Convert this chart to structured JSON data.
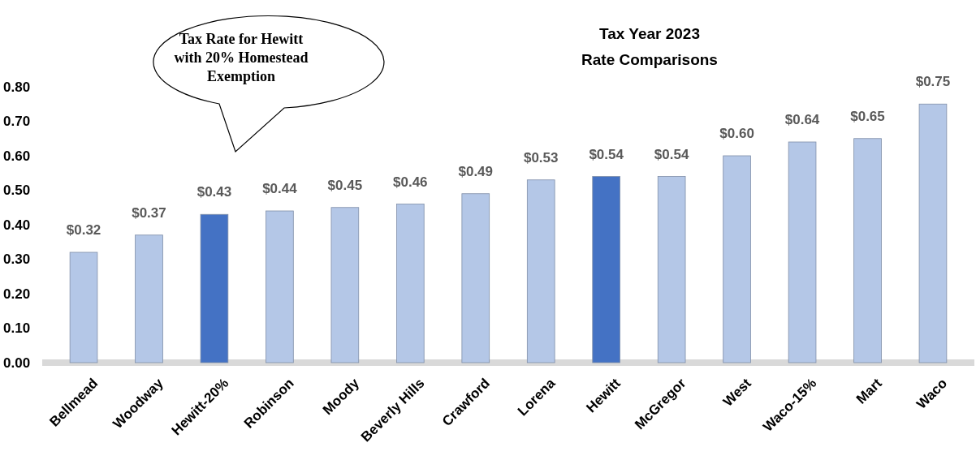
{
  "chart_data": {
    "type": "bar",
    "title": "Tax Year 2023",
    "subtitle": "Rate Comparisons",
    "categories": [
      "Bellmead",
      "Woodway",
      "Hewitt-20%",
      "Robinson",
      "Moody",
      "Beverly Hills",
      "Crawford",
      "Lorena",
      "Hewitt",
      "McGregor",
      "West",
      "Waco-15%",
      "Mart",
      "Waco"
    ],
    "values": [
      0.32,
      0.37,
      0.43,
      0.44,
      0.45,
      0.46,
      0.49,
      0.53,
      0.54,
      0.54,
      0.6,
      0.64,
      0.65,
      0.75
    ],
    "colors": [
      "#b4c7e7",
      "#b4c7e7",
      "#4472c4",
      "#b4c7e7",
      "#b4c7e7",
      "#b4c7e7",
      "#b4c7e7",
      "#b4c7e7",
      "#4472c4",
      "#b4c7e7",
      "#b4c7e7",
      "#b4c7e7",
      "#b4c7e7",
      "#b4c7e7"
    ],
    "value_labels": [
      "$0.32",
      "$0.37",
      "$0.43",
      "$0.44",
      "$0.45",
      "$0.46",
      "$0.49",
      "$0.53",
      "$0.54",
      "$0.54",
      "$0.60",
      "$0.64",
      "$0.65",
      "$0.75"
    ],
    "ylim": [
      0,
      0.8
    ],
    "yticks": [
      {
        "value": 0,
        "label": "0.00"
      },
      {
        "value": 0.1,
        "label": "0.10"
      },
      {
        "value": 0.2,
        "label": "0.20"
      },
      {
        "value": 0.3,
        "label": "0.30"
      },
      {
        "value": 0.4,
        "label": "0.40"
      },
      {
        "value": 0.5,
        "label": "0.50"
      },
      {
        "value": 0.6,
        "label": "0.60"
      },
      {
        "value": 0.7,
        "label": "0.70"
      },
      {
        "value": 0.8,
        "label": "0.80"
      }
    ],
    "annotations": [
      "Tax Rate for Hewitt with 20% Homestead Exemption"
    ]
  }
}
